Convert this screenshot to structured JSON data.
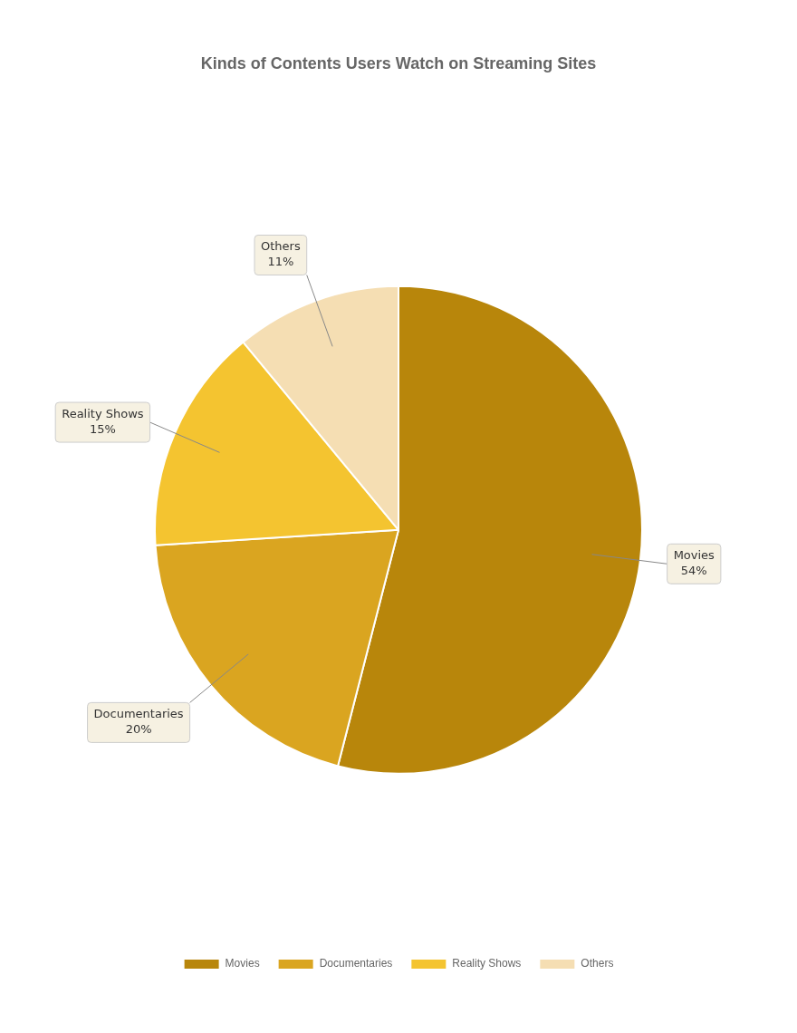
{
  "chart_data": {
    "type": "pie",
    "title": "Kinds of Contents Users Watch on Streaming Sites",
    "categories": [
      "Movies",
      "Documentaries",
      "Reality Shows",
      "Others"
    ],
    "values": [
      54,
      20,
      15,
      11
    ],
    "value_labels": [
      "54%",
      "20%",
      "15%",
      "11%"
    ],
    "colors": [
      "#B8860B",
      "#DAA520",
      "#F4C430",
      "#F5DEB3"
    ],
    "data_labels": true,
    "legend": "bottom"
  }
}
